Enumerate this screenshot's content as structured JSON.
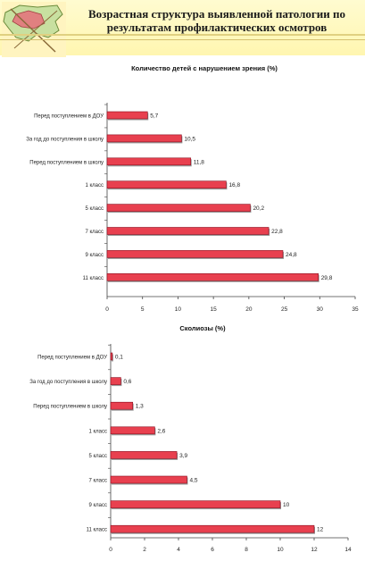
{
  "header": {
    "title": "Возрастная структура выявленной патологии по результатам профилактических осмотров"
  },
  "chart_data": [
    {
      "type": "bar",
      "orientation": "horizontal",
      "title": "Количество  детей с нарушением зрения (%)",
      "categories": [
        "Перед поступлением в ДОУ",
        "За год до поступления в школу",
        "Перед поступлением в школу",
        "1 класс",
        "5 класс",
        "7 класс",
        "9 класс",
        "11 класс"
      ],
      "values": [
        5.7,
        10.5,
        11.8,
        16.8,
        20.2,
        22.8,
        24.8,
        29.8
      ],
      "data_labels": [
        "5,7",
        "10,5",
        "11,8",
        "16,8",
        "20,2",
        "22,8",
        "24,8",
        "29,8"
      ],
      "xlim": [
        0,
        35
      ],
      "xticks": [
        "0",
        "5",
        "10",
        "15",
        "20",
        "25",
        "30",
        "35"
      ],
      "bar_color": "#e8404f",
      "grid": false
    },
    {
      "type": "bar",
      "orientation": "horizontal",
      "title": "Сколиозы  (%)",
      "categories": [
        "Перед поступлением в ДОУ",
        "За год до поступления в школу",
        "Перед поступлением в школу",
        "1 класс",
        "5 класс",
        "7 класс",
        "9 класс",
        "11 класс"
      ],
      "values": [
        0.1,
        0.6,
        1.3,
        2.6,
        3.9,
        4.5,
        10,
        12
      ],
      "data_labels": [
        "0,1",
        "0,6",
        "1,3",
        "2,6",
        "3,9",
        "4,5",
        "10",
        "12"
      ],
      "xlim": [
        0,
        14
      ],
      "xticks": [
        "0",
        "2",
        "4",
        "6",
        "8",
        "10",
        "12",
        "14"
      ],
      "bar_color": "#e8404f",
      "grid": false
    }
  ]
}
